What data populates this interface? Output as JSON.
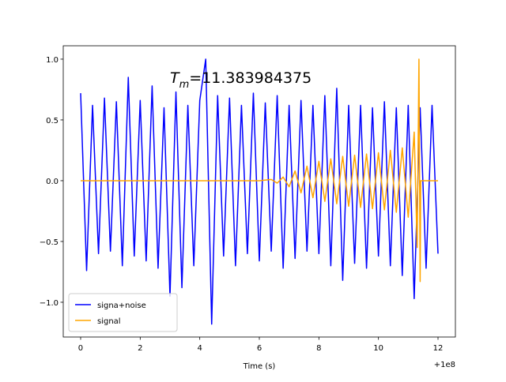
{
  "chart_data": {
    "type": "line",
    "annotation_symbol": "T",
    "annotation_subscript": "m",
    "annotation_value": 11.383984375,
    "x_label": "Time (s)",
    "x_offset_label": "+1e8",
    "xlim": [
      -0.584,
      12.584
    ],
    "xticks": [
      0,
      2,
      4,
      6,
      8,
      10,
      12
    ],
    "ylim": [
      -1.286,
      1.11
    ],
    "yticks": [
      {
        "value": -1,
        "label": "−1.0"
      },
      {
        "value": -0.5,
        "label": "−0.5"
      },
      {
        "value": 0,
        "label": "0.0"
      },
      {
        "value": 0.5,
        "label": "0.5"
      },
      {
        "value": 1,
        "label": "1.0"
      }
    ],
    "legend": "lower left",
    "grid": false,
    "series": [
      {
        "name": "signa+noise",
        "color": "#0000ff",
        "x": [
          0,
          0.2,
          0.4,
          0.6,
          0.8,
          1.0,
          1.2,
          1.4,
          1.6,
          1.8,
          2.0,
          2.2,
          2.4,
          2.6,
          2.8,
          3.0,
          3.2,
          3.4,
          3.6,
          3.8,
          4.0,
          4.2,
          4.4,
          4.6,
          4.8,
          5.0,
          5.2,
          5.4,
          5.6,
          5.8,
          6.0,
          6.2,
          6.4,
          6.6,
          6.8,
          7.0,
          7.2,
          7.4,
          7.6,
          7.8,
          8.0,
          8.2,
          8.4,
          8.6,
          8.8,
          9.0,
          9.2,
          9.4,
          9.6,
          9.8,
          10.0,
          10.2,
          10.4,
          10.6,
          10.8,
          11.0,
          11.2,
          11.4,
          11.6,
          11.8,
          12.0
        ],
        "values": [
          0.72,
          -0.74,
          0.62,
          -0.6,
          0.68,
          -0.58,
          0.65,
          -0.7,
          0.85,
          -0.62,
          0.66,
          -0.66,
          0.78,
          -0.72,
          0.6,
          -0.95,
          0.73,
          -0.88,
          0.62,
          -0.7,
          0.66,
          1.0,
          -1.18,
          0.7,
          -0.62,
          0.68,
          -0.7,
          0.62,
          -0.6,
          0.72,
          -0.66,
          0.64,
          -0.58,
          0.7,
          -0.72,
          0.62,
          -0.64,
          0.66,
          -0.58,
          0.62,
          -0.6,
          0.7,
          -0.7,
          0.76,
          -0.82,
          0.62,
          -0.68,
          0.62,
          -0.72,
          0.6,
          -0.62,
          0.65,
          -0.7,
          0.6,
          -0.78,
          0.62,
          -0.97,
          0.6,
          -0.72,
          0.62,
          -0.6
        ]
      },
      {
        "name": "signal",
        "color": "#ffa500",
        "x": [
          0,
          6.0,
          6.4,
          6.6,
          6.8,
          7.0,
          7.2,
          7.4,
          7.6,
          7.8,
          8.0,
          8.2,
          8.4,
          8.6,
          8.8,
          9.0,
          9.2,
          9.4,
          9.6,
          9.8,
          10.0,
          10.2,
          10.4,
          10.6,
          10.8,
          11.0,
          11.2,
          11.3,
          11.36,
          11.4,
          11.42,
          12.0
        ],
        "values": [
          0,
          0,
          0.01,
          -0.02,
          0.03,
          -0.05,
          0.08,
          -0.1,
          0.12,
          -0.14,
          0.16,
          -0.17,
          0.18,
          -0.19,
          0.2,
          -0.21,
          0.21,
          -0.22,
          0.22,
          -0.23,
          0.23,
          -0.24,
          0.25,
          -0.26,
          0.27,
          -0.3,
          0.4,
          -0.55,
          1.0,
          -0.83,
          0,
          0
        ]
      }
    ]
  }
}
